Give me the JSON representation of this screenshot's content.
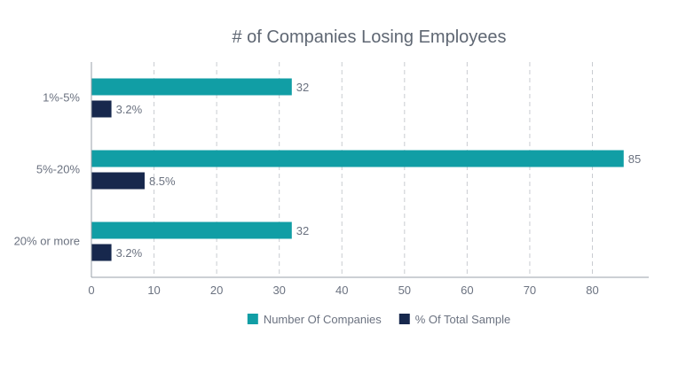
{
  "chart_data": {
    "type": "bar",
    "orientation": "horizontal",
    "title": "# of Companies Losing Employees",
    "xlabel": "",
    "ylabel": "",
    "categories": [
      "1%-5%",
      "5%-20%",
      "20% or more"
    ],
    "series": [
      {
        "name": "Number Of Companies",
        "values": [
          32,
          85,
          32
        ],
        "labels": [
          "32",
          "85",
          "32"
        ],
        "color": "#119ea5"
      },
      {
        "name": "% Of Total Sample",
        "values": [
          3.2,
          8.5,
          3.2
        ],
        "labels": [
          "3.2%",
          "8.5%",
          "3.2%"
        ],
        "color": "#17284d"
      }
    ],
    "xlim": [
      0,
      89
    ],
    "xticks": [
      0,
      10,
      20,
      30,
      40,
      50,
      60,
      70,
      80
    ],
    "grid": "vertical-dashed",
    "legend": "bottom"
  }
}
